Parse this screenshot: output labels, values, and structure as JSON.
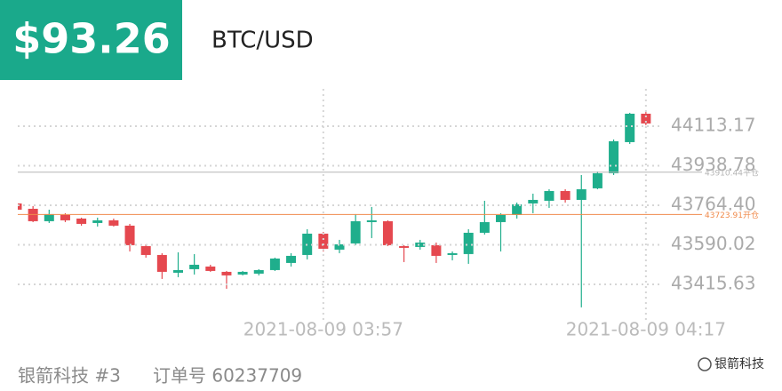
{
  "chart_data": {
    "type": "candlestick",
    "title": "$93.26",
    "subtitle": "BTC/USD",
    "categories": [
      null,
      null,
      null,
      null,
      null,
      null,
      null,
      null,
      null,
      null,
      null,
      null,
      null,
      null,
      null,
      null,
      null,
      null,
      null,
      "2021-08-09 03:57",
      null,
      null,
      null,
      null,
      null,
      null,
      null,
      null,
      null,
      null,
      null,
      null,
      null,
      null,
      null,
      null,
      null,
      null,
      null,
      "2021-08-09 04:17"
    ],
    "series": [
      {
        "up_color": "#1fae8c",
        "down_color": "#e5484f",
        "open": [
          43772.5,
          43749.0,
          43694.2,
          43721.6,
          43705.9,
          43686.3,
          43698.1,
          43674.6,
          43584.4,
          43545.2,
          43466.9,
          43482.5,
          43494.3,
          43470.8,
          43459.0,
          43462.9,
          43478.6,
          43510.0,
          43545.2,
          43639.3,
          43568.8,
          43596.2,
          43690.2,
          43694.2,
          43584.4,
          43580.5,
          43588.4,
          43545.2,
          43549.2,
          43643.2,
          43690.2,
          43721.6,
          43772.5,
          43784.3,
          43827.4,
          43788.2,
          43839.2,
          43905.8,
          44043.0,
          44168.4
        ],
        "high": [
          43780.4,
          43760.8,
          43745.1,
          43729.4,
          43709.8,
          43709.8,
          43705.9,
          43682.4,
          43592.3,
          43553.1,
          43557.0,
          43549.2,
          43502.1,
          43474.7,
          43474.7,
          43482.5,
          43533.5,
          43553.1,
          43658.9,
          43647.1,
          43611.9,
          43725.5,
          43756.9,
          43698.1,
          43588.4,
          43611.9,
          43600.1,
          43560.9,
          43658.9,
          43784.3,
          43729.4,
          43776.5,
          43815.7,
          43835.3,
          43835.3,
          43898.0,
          43913.6,
          44054.7,
          44172.3,
          44184.0
        ],
        "low": [
          43737.3,
          43690.2,
          43686.3,
          43690.2,
          43674.6,
          43670.7,
          43670.7,
          43560.9,
          43533.5,
          43439.4,
          43447.3,
          43459.0,
          43470.8,
          43396.3,
          43455.1,
          43455.1,
          43474.7,
          43494.3,
          43525.7,
          43560.9,
          43553.1,
          43588.4,
          43619.7,
          43584.4,
          43513.9,
          43568.8,
          43510.0,
          43521.7,
          43506.1,
          43635.4,
          43560.9,
          43705.9,
          43729.4,
          43753.0,
          43776.5,
          43314.0,
          43835.3,
          43898.0,
          44035.1,
          44117.4
        ],
        "close": [
          43745.1,
          43694.2,
          43725.5,
          43698.1,
          43682.4,
          43698.1,
          43674.6,
          43588.4,
          43545.2,
          43470.8,
          43478.6,
          43502.1,
          43474.7,
          43455.1,
          43470.8,
          43478.6,
          43529.6,
          43541.3,
          43639.3,
          43572.7,
          43592.3,
          43694.2,
          43698.1,
          43588.4,
          43576.6,
          43600.1,
          43541.3,
          43553.1,
          43643.2,
          43690.2,
          43721.6,
          43768.6,
          43788.2,
          43827.4,
          43788.2,
          43835.3,
          43905.8,
          44046.9,
          44168.4,
          44125.3
        ]
      }
    ],
    "ylim": [
      43298,
      44278
    ],
    "yticks": [
      44113.17,
      43938.78,
      {
        "value": 43764.4,
        "label": "43764.40"
      },
      43590.02,
      43415.63
    ],
    "grid": true,
    "reference_lines": [
      {
        "value": 43910.44,
        "label": "43910.44平仓",
        "color": "#b5b5b5"
      },
      {
        "value": 43723.91,
        "label": "43723.91开仓",
        "color": "#f08a4b"
      }
    ],
    "footer": {
      "account": "银箭科技 #3",
      "order": "订单号 60237709",
      "watermark": "银箭科技"
    }
  }
}
